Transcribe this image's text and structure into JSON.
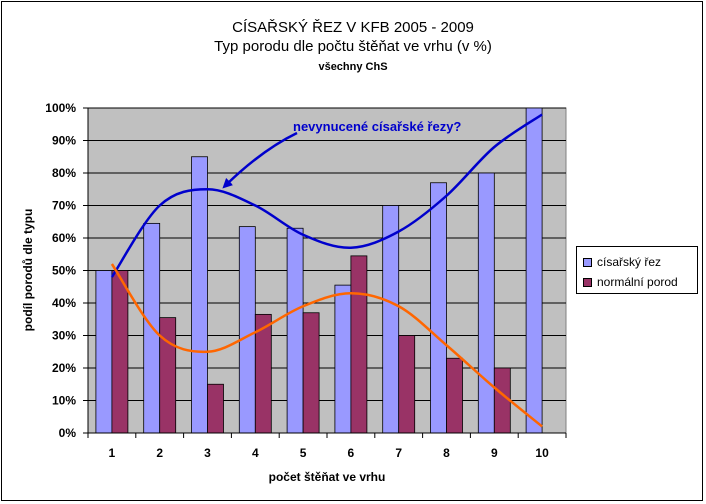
{
  "chart_data": {
    "type": "bar",
    "title": "CÍSAŘSKÝ ŘEZ V KFB 2005 - 2009",
    "subtitle": "Typ porodu dle počtu štěňat ve vrhu (v %)",
    "subtitle2": "všechny ChS",
    "xlabel": "počet štěňat ve vrhu",
    "ylabel": "podíl porodů dle typu",
    "categories": [
      "1",
      "2",
      "3",
      "4",
      "5",
      "6",
      "7",
      "8",
      "9",
      "10"
    ],
    "ylim": [
      0,
      100
    ],
    "ytick_labels": [
      "0%",
      "10%",
      "20%",
      "30%",
      "40%",
      "50%",
      "60%",
      "70%",
      "80%",
      "90%",
      "100%"
    ],
    "grid": true,
    "legend_position": "right",
    "series": [
      {
        "name": "císařský řez",
        "color": "#9999FF",
        "values": [
          50,
          64.5,
          85,
          63.5,
          63,
          45.5,
          70,
          77,
          80,
          100
        ]
      },
      {
        "name": "normální porod",
        "color": "#993366",
        "values": [
          50,
          35.5,
          15,
          36.5,
          37,
          54.5,
          30,
          23,
          20,
          0
        ]
      }
    ],
    "trendlines": [
      {
        "series": "císařský řez",
        "color": "#0000CC",
        "values": [
          48,
          70,
          75,
          70,
          61,
          57,
          62,
          73,
          88,
          98
        ]
      },
      {
        "series": "normální porod",
        "color": "#FF6600",
        "values": [
          52,
          30,
          25,
          31,
          39,
          43,
          39,
          27,
          14,
          2
        ]
      }
    ],
    "annotation": {
      "text": "nevynucené císařské řezy?",
      "color": "#0000CC"
    },
    "plot_bg": "#C0C0C0"
  }
}
